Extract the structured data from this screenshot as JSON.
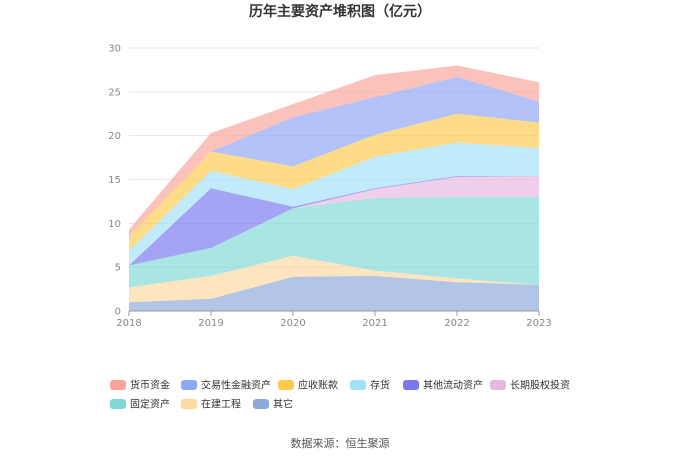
{
  "chart_data": {
    "type": "area",
    "stacked": true,
    "title": "历年主要资产堆积图（亿元）",
    "xlabel": "",
    "ylabel": "",
    "x": [
      "2018",
      "2019",
      "2020",
      "2021",
      "2022",
      "2023"
    ],
    "y_ticks": [
      "0",
      "5",
      "10",
      "15",
      "20",
      "25",
      "30"
    ],
    "ylim": [
      0,
      30
    ],
    "grid": true,
    "legend_position": "bottom",
    "series": [
      {
        "name": "其它",
        "color": "#8eaadb",
        "values": [
          1.0,
          1.4,
          3.9,
          4.0,
          3.3,
          3.0
        ]
      },
      {
        "name": "在建工程",
        "color": "#fcdaa0",
        "values": [
          1.7,
          2.6,
          2.4,
          0.6,
          0.4,
          0.0
        ]
      },
      {
        "name": "固定资产",
        "color": "#7fd8d5",
        "values": [
          2.5,
          3.2,
          5.4,
          8.3,
          9.3,
          10.0
        ]
      },
      {
        "name": "长期股权投资",
        "color": "#e7b8df",
        "values": [
          0.0,
          0.0,
          0.0,
          1.0,
          2.3,
          2.4
        ]
      },
      {
        "name": "其他流动资产",
        "color": "#7b78ee",
        "values": [
          0.0,
          6.8,
          0.2,
          0.1,
          0.1,
          0.0
        ]
      },
      {
        "name": "存货",
        "color": "#a3e1f8",
        "values": [
          1.7,
          2.0,
          2.0,
          3.6,
          3.8,
          3.2
        ]
      },
      {
        "name": "应收账款",
        "color": "#fdca4c",
        "values": [
          1.6,
          2.2,
          2.6,
          2.5,
          3.3,
          2.9
        ]
      },
      {
        "name": "交易性金融资产",
        "color": "#8fa7f7",
        "values": [
          0.0,
          0.0,
          5.6,
          4.3,
          4.2,
          2.4
        ]
      },
      {
        "name": "货币资金",
        "color": "#f9a39b",
        "values": [
          0.8,
          2.1,
          1.5,
          2.5,
          1.3,
          2.2
        ]
      }
    ],
    "legend": [
      "货币资金",
      "交易性金融资产",
      "应收账款",
      "存货",
      "其他流动资产",
      "长期股权投资",
      "固定资产",
      "在建工程",
      "其它"
    ]
  },
  "source": "数据来源：恒生聚源"
}
